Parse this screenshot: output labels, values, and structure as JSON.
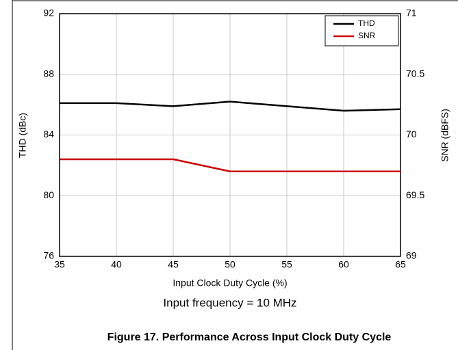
{
  "chart_data": {
    "type": "line",
    "title": "Figure 17. Performance Across Input Clock Duty Cycle",
    "subtitle": "Input frequency = 10 MHz",
    "x_label": "Input Clock Duty Cycle (%)",
    "y_label": "THD (dBc)",
    "y2_label": "SNR (dBFS)",
    "x": [
      35,
      40,
      45,
      50,
      60,
      65
    ],
    "series": [
      {
        "name": "THD",
        "color": "#000000",
        "values": [
          86.1,
          86.1,
          85.9,
          86.2,
          85.6,
          85.7
        ]
      },
      {
        "name": "SNR",
        "color": "#cc0000",
        "axis": "y2",
        "values": [
          69.8,
          69.8,
          69.8,
          69.7,
          69.7,
          69.7
        ]
      }
    ],
    "xlim": [
      35,
      65
    ],
    "xticks": [
      35,
      40,
      45,
      50,
      55,
      60,
      65
    ],
    "ylim": [
      76,
      92
    ],
    "yticks": [
      76,
      80,
      84,
      88,
      92
    ],
    "y2lim": [
      69,
      71
    ],
    "y2ticks": [
      69,
      69.5,
      70,
      70.5,
      71
    ],
    "grid": true,
    "legend": "upper-right"
  }
}
